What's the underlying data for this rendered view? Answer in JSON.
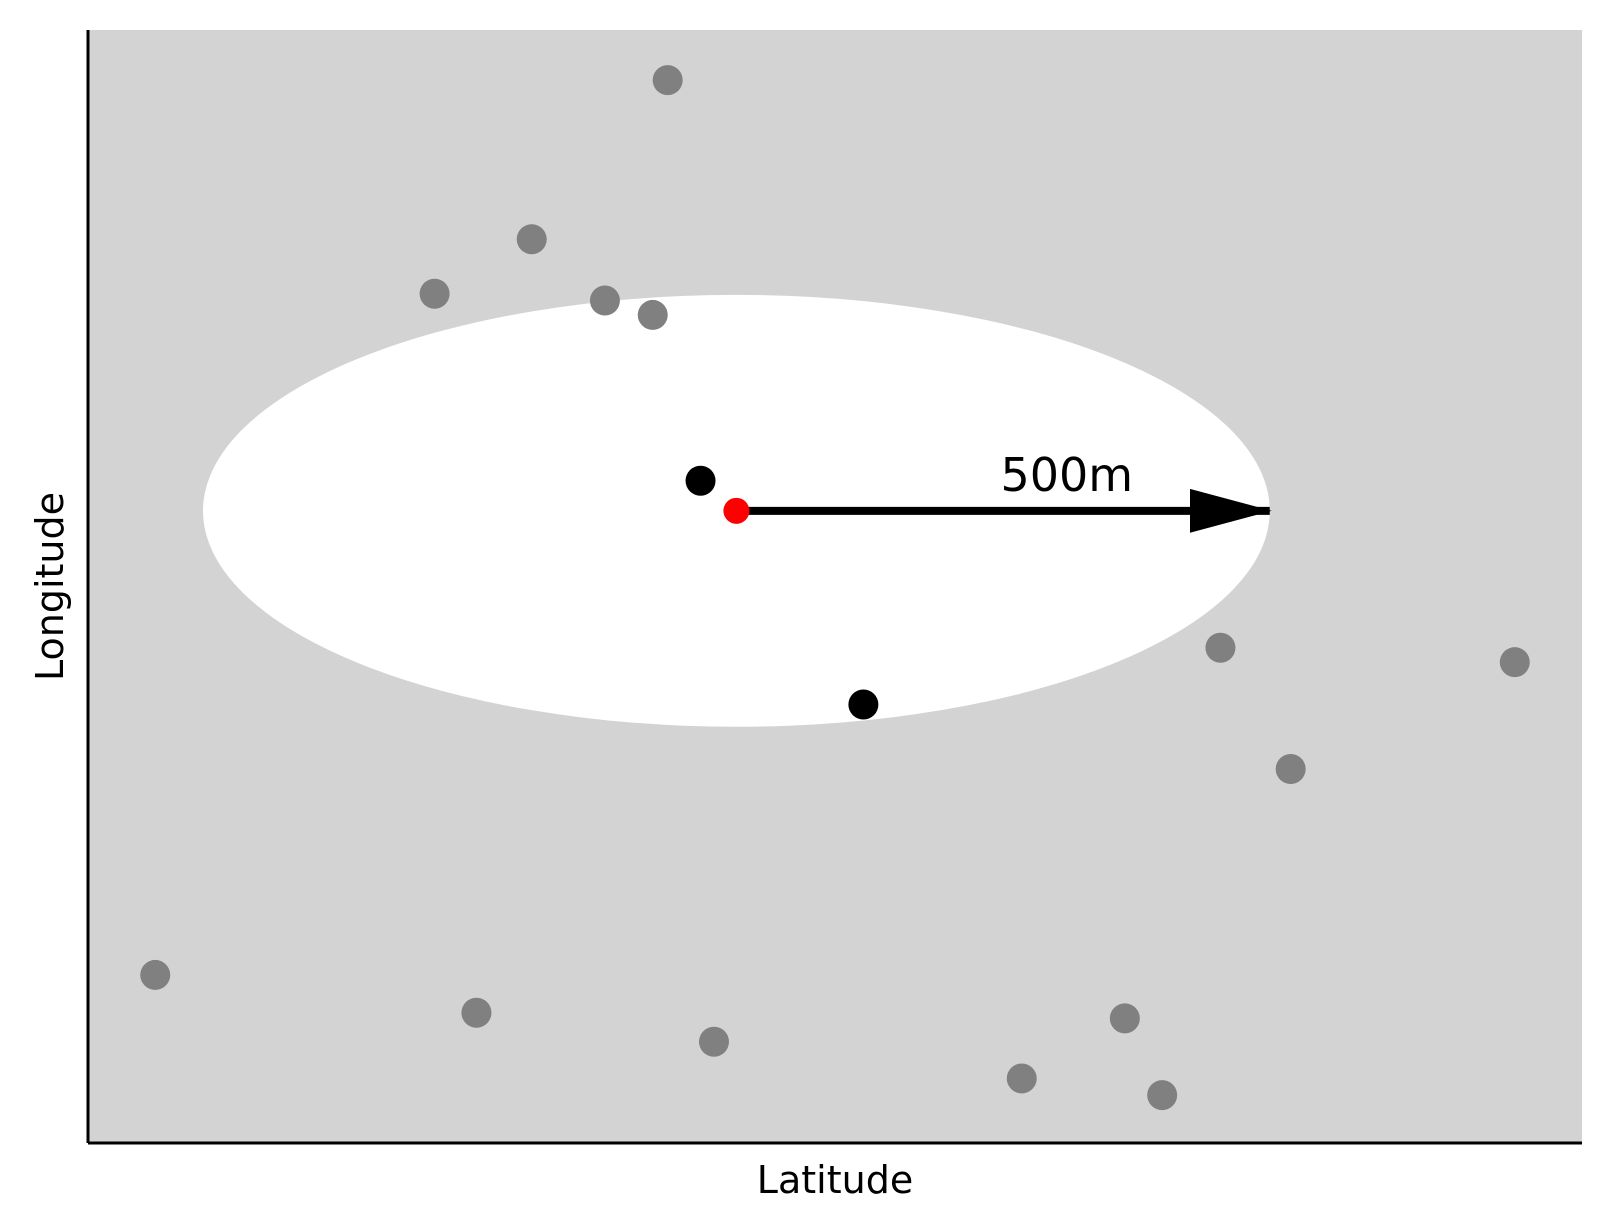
{
  "chart_data": {
    "type": "scatter",
    "xlabel": "Latitude",
    "ylabel": "Longitude",
    "xlim": [
      0,
      1
    ],
    "ylim": [
      0,
      1
    ],
    "grid": false,
    "background_color": "#d3d3d3",
    "region": {
      "shape": "ellipse",
      "center": [
        0.434,
        0.432
      ],
      "radius_x": 0.357,
      "radius_y": 0.194,
      "color": "#ffffff"
    },
    "center_point": {
      "x": 0.434,
      "y": 0.432,
      "color": "#ff0000"
    },
    "arrow": {
      "from": [
        0.434,
        0.432
      ],
      "to": [
        0.791,
        0.432
      ],
      "label": "500m",
      "color": "#000000"
    },
    "series": [
      {
        "color": "#808080",
        "points": [
          [
            0.388,
            0.045
          ],
          [
            0.297,
            0.188
          ],
          [
            0.232,
            0.237
          ],
          [
            0.346,
            0.243
          ],
          [
            0.378,
            0.256
          ],
          [
            0.758,
            0.555
          ],
          [
            0.955,
            0.568
          ],
          [
            0.805,
            0.664
          ],
          [
            0.045,
            0.849
          ],
          [
            0.26,
            0.883
          ],
          [
            0.419,
            0.909
          ],
          [
            0.694,
            0.888
          ],
          [
            0.625,
            0.942
          ],
          [
            0.719,
            0.957
          ]
        ]
      },
      {
        "color": "#000000",
        "points": [
          [
            0.41,
            0.405
          ],
          [
            0.519,
            0.606
          ]
        ]
      }
    ]
  }
}
